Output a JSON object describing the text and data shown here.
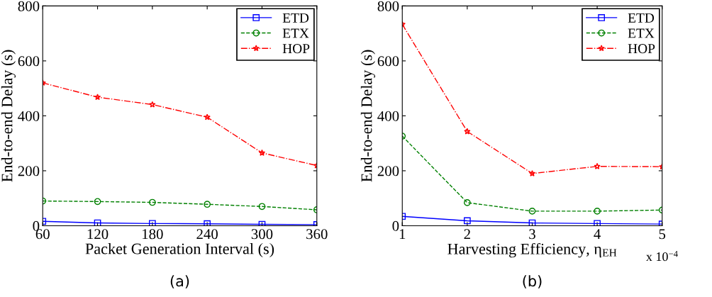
{
  "chart_data": [
    {
      "type": "line",
      "xlabel": "Packet Generation Interval (s)",
      "ylabel": "End-to-end Delay (s)",
      "x": [
        60,
        120,
        180,
        240,
        300,
        360
      ],
      "series": [
        {
          "name": "ETD",
          "color": "#0000ff",
          "values": [
            16,
            10,
            8,
            7,
            5,
            4
          ],
          "marker": "square",
          "line_style": "solid"
        },
        {
          "name": "ETX",
          "color": "#008000",
          "values": [
            90,
            88,
            85,
            78,
            70,
            58
          ],
          "marker": "circle",
          "line_style": "dashed"
        },
        {
          "name": "HOP",
          "color": "#ff0000",
          "values": [
            520,
            468,
            441,
            395,
            265,
            219
          ],
          "marker": "star",
          "line_style": "dashdot"
        }
      ],
      "xlim": [
        60,
        360
      ],
      "xticks": [
        60,
        120,
        180,
        240,
        300,
        360
      ],
      "ylim": [
        0,
        800
      ],
      "yticks": [
        0,
        200,
        400,
        600,
        800
      ],
      "grid": false,
      "legend": "top right",
      "annotations": [
        "(a)"
      ]
    },
    {
      "type": "line",
      "xlabel": "Harvesting Efficiency, η$_{EH}$",
      "ylabel": "End-to-end Delay (s)",
      "x": [
        1,
        2,
        3,
        4,
        5
      ],
      "series": [
        {
          "name": "ETD",
          "color": "#0000ff",
          "values": [
            34,
            18,
            10,
            8,
            6
          ],
          "marker": "square",
          "line_style": "solid"
        },
        {
          "name": "ETX",
          "color": "#008000",
          "values": [
            326,
            84,
            53,
            53,
            57
          ],
          "marker": "circle",
          "line_style": "dashed"
        },
        {
          "name": "HOP",
          "color": "#ff0000",
          "values": [
            733,
            343,
            190,
            216,
            215
          ],
          "marker": "star",
          "line_style": "dashdot"
        }
      ],
      "xlim": [
        1,
        5
      ],
      "xticks": [
        1,
        2,
        3,
        4,
        5
      ],
      "ylim": [
        0,
        800
      ],
      "yticks": [
        0,
        200,
        400,
        600,
        800
      ],
      "grid": false,
      "legend": "top right",
      "annotations": [
        "x 10$^{−4}$",
        "(b)"
      ]
    }
  ]
}
